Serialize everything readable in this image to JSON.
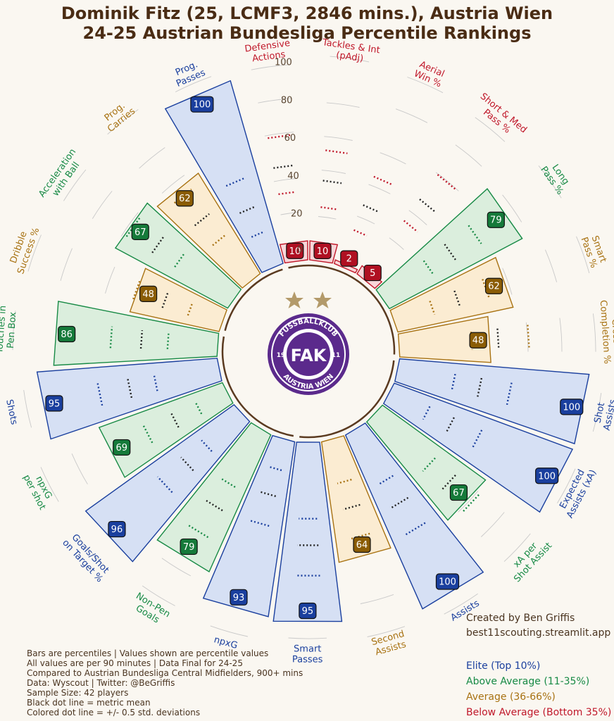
{
  "page": {
    "title_line1": "Dominik Fitz (25, LCMF3, 2846 mins.), Austria Wien",
    "title_line2": "24-25 Austrian Bundesliga Percentile Rankings",
    "notes": [
      "Bars are percentiles | Values shown are percentile values",
      "All values are per 90 minutes | Data Final for 24-25",
      "Compared to Austrian Bundesliga Central Midfielders, 900+ mins",
      "Data: Wyscout | Twitter: @BeGriffis",
      "Sample Size: 42 players",
      "Black dot line = metric mean",
      "Colored dot line = +/- 0.5 std. deviations"
    ],
    "credit_line1": "Created by Ben Griffis",
    "credit_line2": "best11scouting.streamlit.app",
    "logo_text_top": "FUSSBALLKLUB",
    "logo_text_bottom": "AUSTRIA WIEN",
    "logo_year_left": "19",
    "logo_year_right": "11",
    "logo_letters": "FAK"
  },
  "chart_data": {
    "type": "radial-bar",
    "radial_range": [
      0,
      100
    ],
    "radial_ticks": [
      0,
      20,
      40,
      60,
      80,
      100
    ],
    "legend": [
      {
        "label": "Elite (Top 10%)",
        "color": "#1a3f9e"
      },
      {
        "label": "Above Average (11-35%)",
        "color": "#178a45"
      },
      {
        "label": "Average (36-66%)",
        "color": "#a87212"
      },
      {
        "label": "Below Average (Bottom 35%)",
        "color": "#c0182a"
      }
    ],
    "tiers": {
      "elite": {
        "stroke": "#1a3f9e",
        "fill": "#d6e0f4",
        "badge": "#1a3f9e"
      },
      "above": {
        "stroke": "#178a45",
        "fill": "#dbeedd",
        "badge": "#157a3a"
      },
      "average": {
        "stroke": "#a87212",
        "fill": "#fbecd2",
        "badge": "#8a5c05"
      },
      "below": {
        "stroke": "#c0182a",
        "fill": "#f8d6d9",
        "badge": "#b01022"
      }
    },
    "metrics": [
      {
        "label": "npxG",
        "value": 93,
        "tier": "elite"
      },
      {
        "label": "Non-Pen\nGoals",
        "value": 79,
        "tier": "above"
      },
      {
        "label": "Goals/Shot\non Target %",
        "value": 96,
        "tier": "elite"
      },
      {
        "label": "npxG\nper shot",
        "value": 69,
        "tier": "above"
      },
      {
        "label": "Shots",
        "value": 95,
        "tier": "elite"
      },
      {
        "label": "Touches in\nPen Box",
        "value": 86,
        "tier": "above"
      },
      {
        "label": "Dribble\nSuccess %",
        "value": 48,
        "tier": "average"
      },
      {
        "label": "Acceleration\nwith Ball",
        "value": 67,
        "tier": "above"
      },
      {
        "label": "Prog.\nCarries",
        "value": 62,
        "tier": "average"
      },
      {
        "label": "Prog.\nPasses",
        "value": 100,
        "tier": "elite"
      },
      {
        "label": "Defensive\nActions",
        "value": 10,
        "tier": "below"
      },
      {
        "label": "Tackles & Int\n(pAdj)",
        "value": 10,
        "tier": "below"
      },
      {
        "label": "Aerial\nWin %",
        "value": 2,
        "tier": "below"
      },
      {
        "label": "Short & Med\nPass %",
        "value": 5,
        "tier": "below"
      },
      {
        "label": "Long\nPass %",
        "value": 79,
        "tier": "above"
      },
      {
        "label": "Smart\nPass %",
        "value": 62,
        "tier": "average"
      },
      {
        "label": "Cross\nCompletion %",
        "value": 48,
        "tier": "average"
      },
      {
        "label": "Shot\nAssists",
        "value": 100,
        "tier": "elite"
      },
      {
        "label": "Expected\nAssists (xA)",
        "value": 100,
        "tier": "elite"
      },
      {
        "label": "xA per\nShot Assist",
        "value": 67,
        "tier": "above"
      },
      {
        "label": "Assists",
        "value": 100,
        "tier": "elite"
      },
      {
        "label": "Second\nAssists",
        "value": 64,
        "tier": "average"
      },
      {
        "label": "Smart\nPasses",
        "value": 95,
        "tier": "elite"
      }
    ]
  }
}
